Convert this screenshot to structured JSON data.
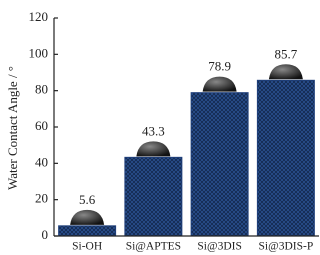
{
  "chart_data": {
    "type": "bar",
    "y_label": "Water Contact Angle / °",
    "categories": [
      "Si-OH",
      "Si@APTES",
      "Si@3DIS",
      "Si@3DIS-P"
    ],
    "values": [
      5.6,
      43.3,
      78.9,
      85.7
    ],
    "color": "#1f3f7a",
    "ylim": [
      0,
      120
    ],
    "yticks": [
      0,
      20,
      40,
      60,
      80,
      100,
      120
    ]
  }
}
